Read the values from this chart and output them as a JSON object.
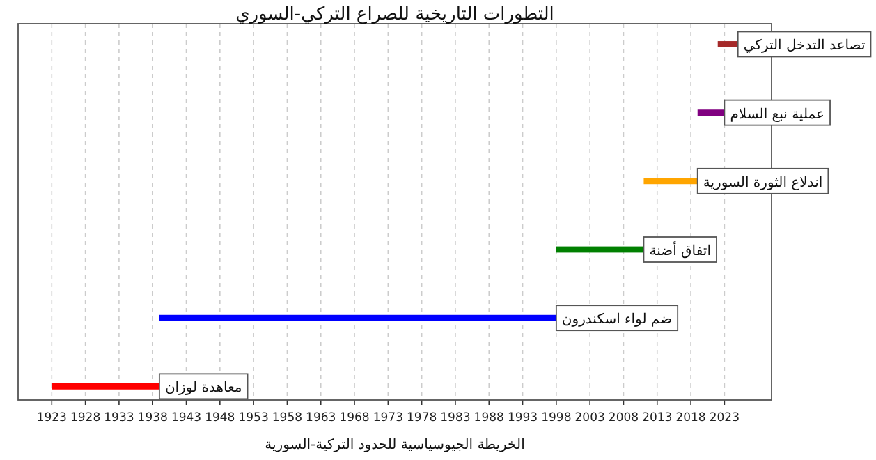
{
  "chart_data": {
    "type": "bar",
    "orientation": "horizontal",
    "title": "التطورات التاريخية للصراع التركي-السوري",
    "xlabel": "الخريطة الجيوسياسية للحدود التركية-السورية",
    "categories": [
      "تصاعد التدخل التركي",
      "عملية نبع السلام",
      "اندلاع الثورة السورية",
      "اتفاق أضنة",
      "ضم لواء اسكندرون",
      "معاهدة لوزان"
    ],
    "base": [
      2022,
      2019,
      2011,
      1998,
      1939,
      1923
    ],
    "values": [
      3,
      4,
      8,
      13,
      59,
      16
    ],
    "colors": [
      "#a52a2a",
      "#800080",
      "#ffa500",
      "#008000",
      "#0000ff",
      "#ff0000"
    ],
    "xlim": [
      1918,
      2030
    ],
    "xticks": [
      1923,
      1928,
      1933,
      1938,
      1943,
      1948,
      1953,
      1958,
      1963,
      1968,
      1973,
      1978,
      1983,
      1988,
      1993,
      1998,
      2003,
      2008,
      2013,
      2018,
      2023
    ],
    "grid": "x",
    "tick_labels": "x"
  }
}
